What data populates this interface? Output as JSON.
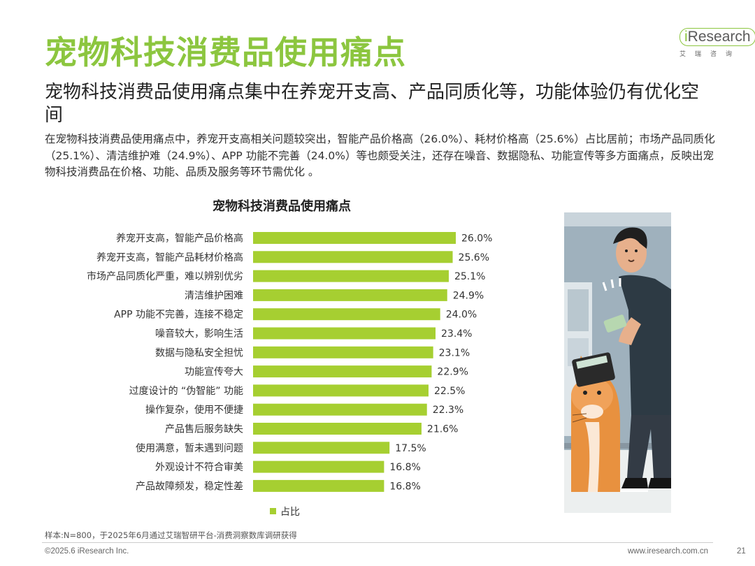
{
  "page": {
    "title": "宠物科技消费品使用痛点",
    "subtitle": "宠物科技消费品使用痛点集中在养宠开支高、产品同质化等，功能体验仍有优化空间",
    "summary": "在宠物科技消费品使用痛点中，养宠开支高相关问题较突出，智能产品价格高（26.0%）、耗材价格高（25.6%）占比居前；市场产品同质化（25.1%）、清洁维护难（24.9%）、APP 功能不完善（24.0%）等也颇受关注，还存在噪音、数据隐私、功能宣传等多方面痛点，反映出宠物科技消费品在价格、功能、品质及服务等环节需优化 。",
    "source": "样本:N=800，于2025年6月通过艾瑞智研平台-消费洞察数库调研获得",
    "copyright": "©2025.6 iResearch Inc.",
    "website": "www.iresearch.com.cn",
    "page_number": "21"
  },
  "logo": {
    "prefix": "i",
    "name": "Research",
    "sub": "艾瑞咨询"
  },
  "colors": {
    "accent": "#8cc63f",
    "bar": "#a6cf31"
  },
  "chart_data": {
    "type": "bar",
    "orientation": "horizontal",
    "title": "宠物科技消费品使用痛点",
    "categories": [
      "养宠开支高，智能产品价格高",
      "养宠开支高，智能产品耗材价格高",
      "市场产品同质化严重，难以辨别优劣",
      "清洁维护困难",
      "APP 功能不完善，连接不稳定",
      "噪音较大，影响生活",
      "数据与隐私安全担忧",
      "功能宣传夸大",
      "过度设计的 “伪智能” 功能",
      "操作复杂，使用不便捷",
      "产品售后服务缺失",
      "使用满意，暂未遇到问题",
      "外观设计不符合审美",
      "产品故障频发，稳定性差"
    ],
    "series": [
      {
        "name": "占比",
        "values": [
          26.0,
          25.6,
          25.1,
          24.9,
          24.0,
          23.4,
          23.1,
          22.9,
          22.5,
          22.3,
          21.6,
          17.5,
          16.8,
          16.8
        ],
        "labels": [
          "26.0%",
          "25.6%",
          "25.1%",
          "24.9%",
          "24.0%",
          "23.4%",
          "23.1%",
          "22.9%",
          "22.5%",
          "22.3%",
          "21.6%",
          "17.5%",
          "16.8%",
          "16.8%"
        ]
      }
    ],
    "legend": "bottom"
  }
}
